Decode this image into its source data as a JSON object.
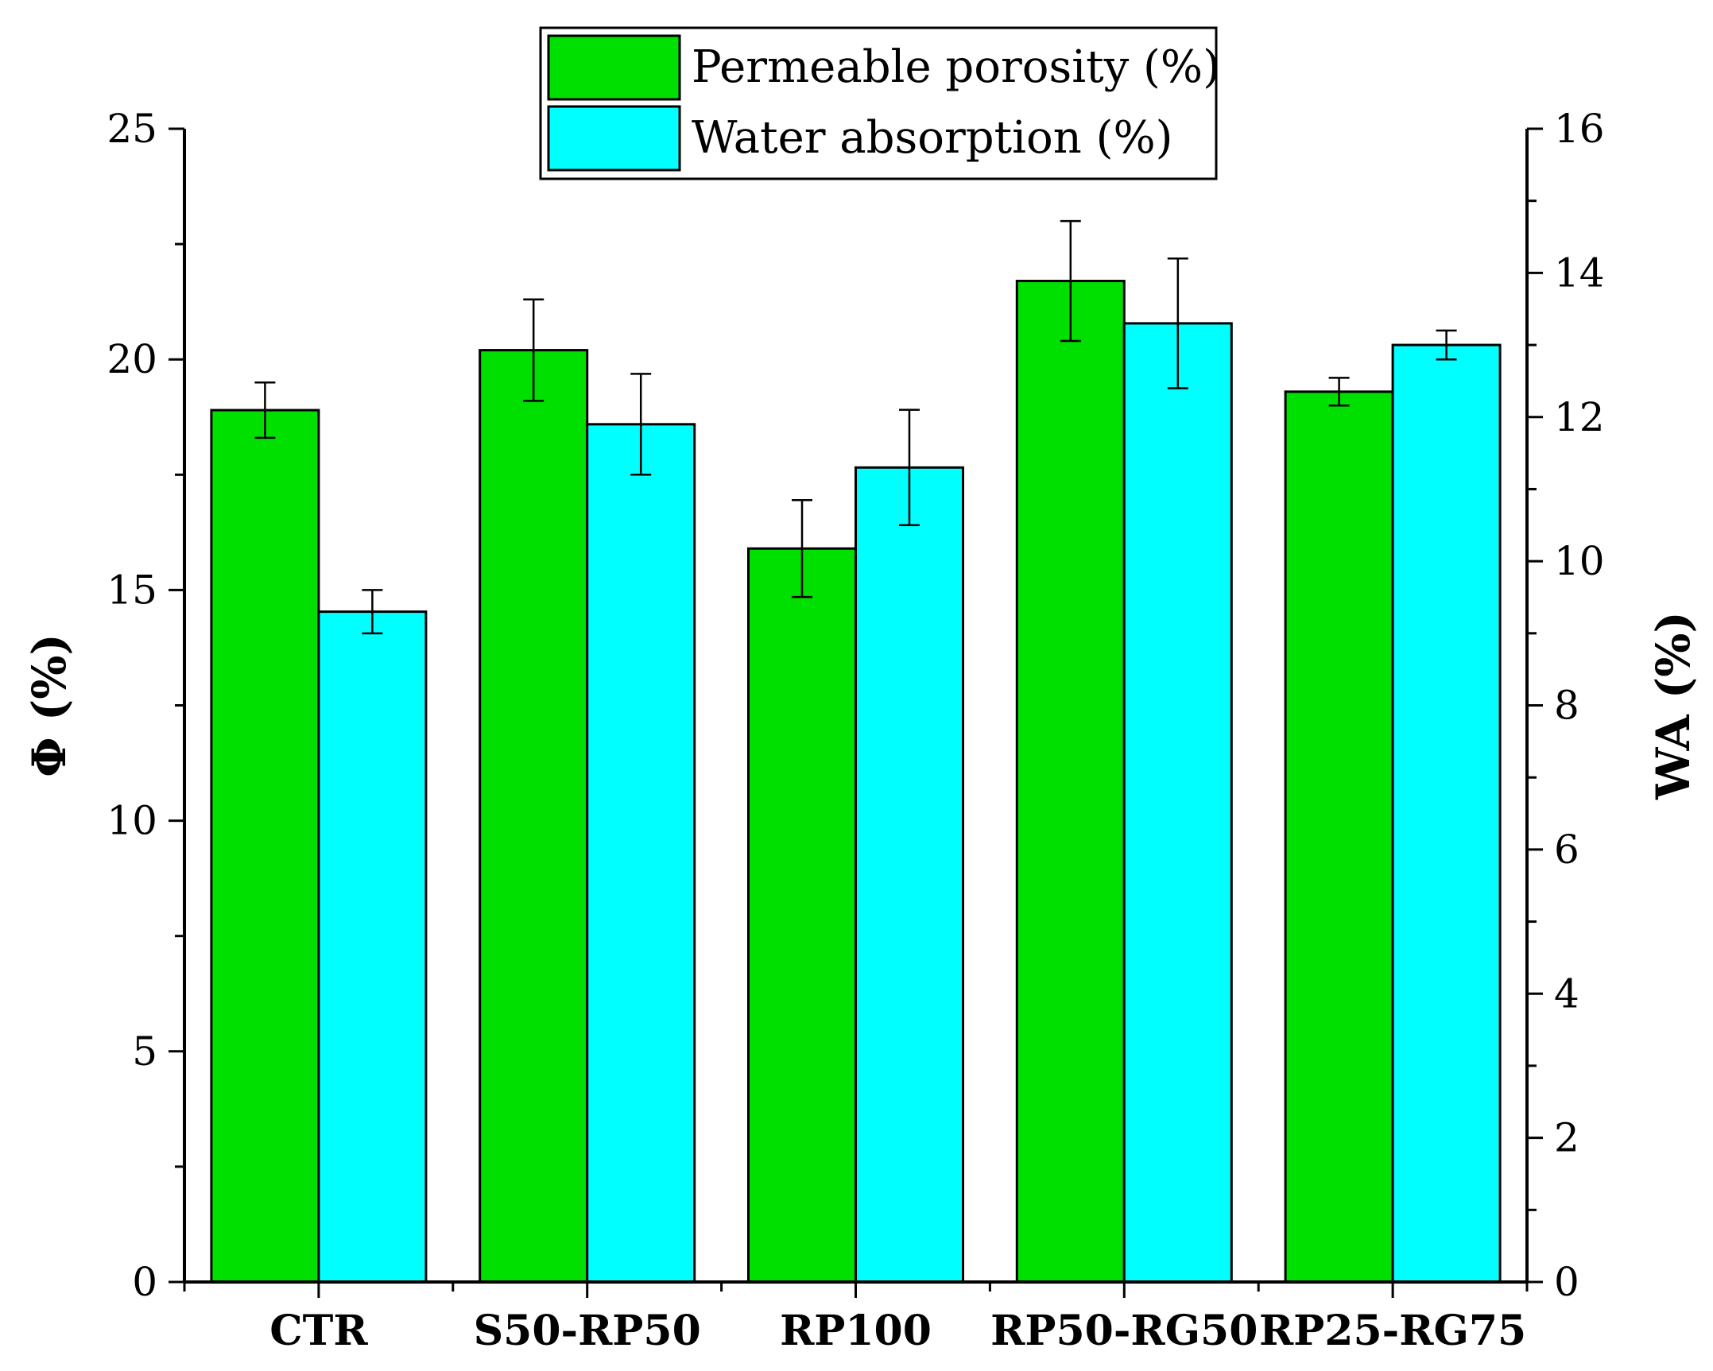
{
  "chart_data": {
    "type": "bar",
    "categories": [
      "CTR",
      "S50-RP50",
      "RP100",
      "RP50-RG50",
      "RP25-RG75"
    ],
    "series": [
      {
        "name": "Permeable porosity (%)",
        "axis": "left",
        "color": "#00e000",
        "values": [
          18.9,
          20.2,
          15.9,
          21.7,
          19.3
        ],
        "errors": [
          0.6,
          1.1,
          1.05,
          1.3,
          0.3
        ]
      },
      {
        "name": "Water absorption (%)",
        "axis": "right",
        "color": "#00ffff",
        "values": [
          9.3,
          11.9,
          11.3,
          13.3,
          13.0
        ],
        "errors": [
          0.3,
          0.7,
          0.8,
          0.9,
          0.2
        ]
      }
    ],
    "y_left": {
      "label": "Φ (%)",
      "range": [
        0,
        25
      ],
      "major_ticks": [
        0,
        5,
        10,
        15,
        20,
        25
      ],
      "minor_step": 2.5
    },
    "y_right": {
      "label": "WA (%)",
      "range": [
        0,
        16
      ],
      "major_ticks": [
        0,
        2,
        4,
        6,
        8,
        10,
        12,
        14,
        16
      ],
      "minor_step": 1
    },
    "legend_position": "top-center",
    "grid": false
  }
}
